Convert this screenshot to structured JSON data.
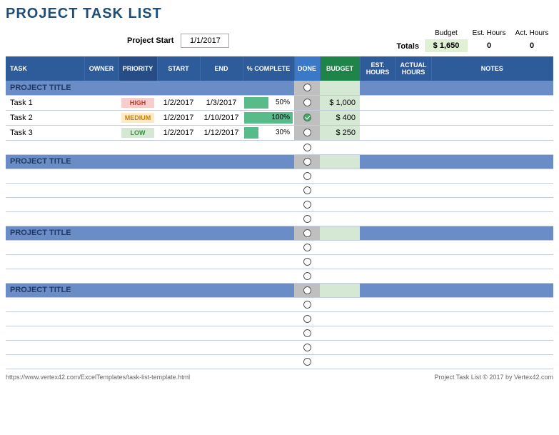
{
  "title": "PROJECT TASK LIST",
  "project_start": {
    "label": "Project Start",
    "value": "1/1/2017"
  },
  "totals": {
    "label": "Totals",
    "budget": {
      "label": "Budget",
      "value": "$   1,650"
    },
    "est_hours": {
      "label": "Est. Hours",
      "value": "0"
    },
    "act_hours": {
      "label": "Act. Hours",
      "value": "0"
    }
  },
  "columns": {
    "task": "TASK",
    "owner": "OWNER",
    "priority": "PRIORITY",
    "start": "START",
    "end": "END",
    "pct": "% COMPLETE",
    "done": "DONE",
    "budget": "BUDGET",
    "est": "EST. HOURS",
    "act": "ACTUAL HOURS",
    "notes": "NOTES"
  },
  "colors": {
    "header_bg": "#2e5b9a",
    "section_bg": "#6b8dc7",
    "done_bg": "#bfbfbf",
    "budget_bg": "#d5e8d4",
    "budget_header": "#1e8449",
    "pct_bar": "#57bb8a"
  },
  "sections": [
    {
      "title": "PROJECT TITLE",
      "rows": [
        {
          "task": "Task 1",
          "priority": "HIGH",
          "start": "1/2/2017",
          "end": "1/3/2017",
          "pct": 50,
          "done": false,
          "budget": "$    1,000"
        },
        {
          "task": "Task 2",
          "priority": "MEDIUM",
          "start": "1/2/2017",
          "end": "1/10/2017",
          "pct": 100,
          "done": true,
          "budget": "$       400"
        },
        {
          "task": "Task 3",
          "priority": "LOW",
          "start": "1/2/2017",
          "end": "1/12/2017",
          "pct": 30,
          "done": false,
          "budget": "$       250"
        },
        {
          "empty": true
        }
      ]
    },
    {
      "title": "PROJECT TITLE",
      "rows": [
        {
          "empty": true
        },
        {
          "empty": true
        },
        {
          "empty": true
        },
        {
          "empty": true
        }
      ]
    },
    {
      "title": "PROJECT TITLE",
      "rows": [
        {
          "empty": true
        },
        {
          "empty": true
        },
        {
          "empty": true
        }
      ]
    },
    {
      "title": "PROJECT TITLE",
      "rows": [
        {
          "empty": true
        },
        {
          "empty": true
        },
        {
          "empty": true
        },
        {
          "empty": true
        },
        {
          "empty": true
        }
      ]
    }
  ],
  "footer": {
    "left": "https://www.vertex42.com/ExcelTemplates/task-list-template.html",
    "right": "Project Task List © 2017 by Vertex42.com"
  }
}
